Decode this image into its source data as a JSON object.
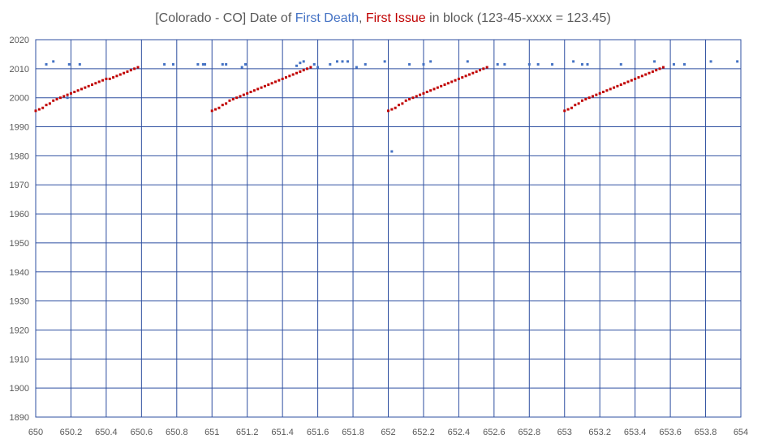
{
  "title": {
    "prefix": "[Colorado - CO] Date of ",
    "first_death": "First Death",
    "sep": ", ",
    "first_issue": "First Issue",
    "suffix": " in block (123-45-xxxx = 123.45)"
  },
  "colors": {
    "first_death": "#4472C4",
    "first_issue": "#C00000",
    "grid": "#2E4FA0",
    "title_text": "#595959"
  },
  "chart_data": {
    "type": "scatter",
    "xlim": [
      650,
      654
    ],
    "ylim": [
      1890,
      2020
    ],
    "x_ticks": [
      "650",
      "650.2",
      "650.4",
      "650.6",
      "650.8",
      "651",
      "651.2",
      "651.4",
      "651.6",
      "651.8",
      "652",
      "652.2",
      "652.4",
      "652.6",
      "652.8",
      "653",
      "653.2",
      "653.4",
      "653.6",
      "653.8",
      "654"
    ],
    "y_ticks": [
      "1890",
      "1900",
      "1910",
      "1920",
      "1930",
      "1940",
      "1950",
      "1960",
      "1970",
      "1980",
      "1990",
      "2000",
      "2010",
      "2020"
    ],
    "grid": true,
    "legend": "none",
    "series": [
      {
        "name": "First Issue",
        "color": "#C00000",
        "points": [
          [
            650.0,
            1995.5
          ],
          [
            650.02,
            1996
          ],
          [
            650.04,
            1996.5
          ],
          [
            650.06,
            1997.5
          ],
          [
            650.08,
            1998
          ],
          [
            650.1,
            1999
          ],
          [
            650.12,
            1999.5
          ],
          [
            650.14,
            2000
          ],
          [
            650.16,
            2000.5
          ],
          [
            650.18,
            2001
          ],
          [
            650.2,
            2001.5
          ],
          [
            650.22,
            2002
          ],
          [
            650.24,
            2002.5
          ],
          [
            650.26,
            2003
          ],
          [
            650.28,
            2003.5
          ],
          [
            650.3,
            2004
          ],
          [
            650.32,
            2004.5
          ],
          [
            650.34,
            2005
          ],
          [
            650.36,
            2005.5
          ],
          [
            650.38,
            2006
          ],
          [
            650.4,
            2006.5
          ],
          [
            650.42,
            2006.5
          ],
          [
            650.44,
            2007
          ],
          [
            650.46,
            2007.5
          ],
          [
            650.48,
            2008
          ],
          [
            650.5,
            2008.5
          ],
          [
            650.52,
            2009
          ],
          [
            650.54,
            2009.5
          ],
          [
            650.56,
            2010
          ],
          [
            650.58,
            2010.5
          ],
          [
            651.0,
            1995.5
          ],
          [
            651.02,
            1996
          ],
          [
            651.04,
            1996.5
          ],
          [
            651.06,
            1997.5
          ],
          [
            651.08,
            1998
          ],
          [
            651.1,
            1999
          ],
          [
            651.12,
            1999.5
          ],
          [
            651.14,
            2000
          ],
          [
            651.16,
            2000.5
          ],
          [
            651.18,
            2001
          ],
          [
            651.2,
            2001.5
          ],
          [
            651.22,
            2002
          ],
          [
            651.24,
            2002.5
          ],
          [
            651.26,
            2003
          ],
          [
            651.28,
            2003.5
          ],
          [
            651.3,
            2004
          ],
          [
            651.32,
            2004.5
          ],
          [
            651.34,
            2005
          ],
          [
            651.36,
            2005.5
          ],
          [
            651.38,
            2006
          ],
          [
            651.4,
            2006.5
          ],
          [
            651.42,
            2007
          ],
          [
            651.44,
            2007.5
          ],
          [
            651.46,
            2008
          ],
          [
            651.48,
            2008.5
          ],
          [
            651.5,
            2009
          ],
          [
            651.52,
            2009.5
          ],
          [
            651.54,
            2010
          ],
          [
            651.56,
            2010.5
          ],
          [
            652.0,
            1995.5
          ],
          [
            652.02,
            1996
          ],
          [
            652.04,
            1996.5
          ],
          [
            652.06,
            1997.5
          ],
          [
            652.08,
            1998
          ],
          [
            652.1,
            1999
          ],
          [
            652.12,
            1999.5
          ],
          [
            652.14,
            2000
          ],
          [
            652.16,
            2000.5
          ],
          [
            652.18,
            2001
          ],
          [
            652.2,
            2001.5
          ],
          [
            652.22,
            2002
          ],
          [
            652.24,
            2002.5
          ],
          [
            652.26,
            2003
          ],
          [
            652.28,
            2003.5
          ],
          [
            652.3,
            2004
          ],
          [
            652.32,
            2004.5
          ],
          [
            652.34,
            2005
          ],
          [
            652.36,
            2005.5
          ],
          [
            652.38,
            2006
          ],
          [
            652.4,
            2006.5
          ],
          [
            652.42,
            2007
          ],
          [
            652.44,
            2007.5
          ],
          [
            652.46,
            2008
          ],
          [
            652.48,
            2008.5
          ],
          [
            652.5,
            2009
          ],
          [
            652.52,
            2009.5
          ],
          [
            652.54,
            2010
          ],
          [
            652.56,
            2010.5
          ],
          [
            653.0,
            1995.5
          ],
          [
            653.02,
            1996
          ],
          [
            653.04,
            1996.5
          ],
          [
            653.06,
            1997.5
          ],
          [
            653.08,
            1998
          ],
          [
            653.1,
            1999
          ],
          [
            653.12,
            1999.5
          ],
          [
            653.14,
            2000
          ],
          [
            653.16,
            2000.5
          ],
          [
            653.18,
            2001
          ],
          [
            653.2,
            2001.5
          ],
          [
            653.22,
            2002
          ],
          [
            653.24,
            2002.5
          ],
          [
            653.26,
            2003
          ],
          [
            653.28,
            2003.5
          ],
          [
            653.3,
            2004
          ],
          [
            653.32,
            2004.5
          ],
          [
            653.34,
            2005
          ],
          [
            653.36,
            2005.5
          ],
          [
            653.38,
            2006
          ],
          [
            653.4,
            2006.5
          ],
          [
            653.42,
            2007
          ],
          [
            653.44,
            2007.5
          ],
          [
            653.46,
            2008
          ],
          [
            653.48,
            2008.5
          ],
          [
            653.5,
            2009
          ],
          [
            653.52,
            2009.5
          ],
          [
            653.54,
            2010
          ],
          [
            653.56,
            2010.5
          ]
        ]
      },
      {
        "name": "First Death",
        "color": "#4472C4",
        "points": [
          [
            650.06,
            2011.5
          ],
          [
            650.1,
            2012.5
          ],
          [
            650.19,
            2011.5
          ],
          [
            650.25,
            2011.5
          ],
          [
            650.18,
            2000
          ],
          [
            650.73,
            2011.5
          ],
          [
            650.78,
            2011.5
          ],
          [
            650.92,
            2011.5
          ],
          [
            650.95,
            2011.5
          ],
          [
            650.96,
            2011.5
          ],
          [
            651.06,
            2011.5
          ],
          [
            651.08,
            2011.5
          ],
          [
            651.17,
            2010.5
          ],
          [
            651.19,
            2011.5
          ],
          [
            651.48,
            2011
          ],
          [
            651.5,
            2012
          ],
          [
            651.52,
            2012.5
          ],
          [
            651.58,
            2011.5
          ],
          [
            651.6,
            2010.5
          ],
          [
            651.67,
            2011.5
          ],
          [
            651.71,
            2012.5
          ],
          [
            651.74,
            2012.5
          ],
          [
            651.77,
            2012.5
          ],
          [
            651.82,
            2010.5
          ],
          [
            651.87,
            2011.5
          ],
          [
            651.98,
            2012.5
          ],
          [
            652.02,
            1981.5
          ],
          [
            652.12,
            2011.5
          ],
          [
            652.2,
            2011.5
          ],
          [
            652.24,
            2012.5
          ],
          [
            652.45,
            2012.5
          ],
          [
            652.62,
            2011.5
          ],
          [
            652.66,
            2011.5
          ],
          [
            652.8,
            2011.5
          ],
          [
            652.85,
            2011.5
          ],
          [
            652.93,
            2011.5
          ],
          [
            653.05,
            2012.5
          ],
          [
            653.1,
            2011.5
          ],
          [
            653.13,
            2011.5
          ],
          [
            653.32,
            2011.5
          ],
          [
            653.51,
            2012.5
          ],
          [
            653.62,
            2011.5
          ],
          [
            653.68,
            2011.5
          ],
          [
            653.83,
            2012.5
          ],
          [
            653.98,
            2012.5
          ]
        ]
      }
    ]
  }
}
